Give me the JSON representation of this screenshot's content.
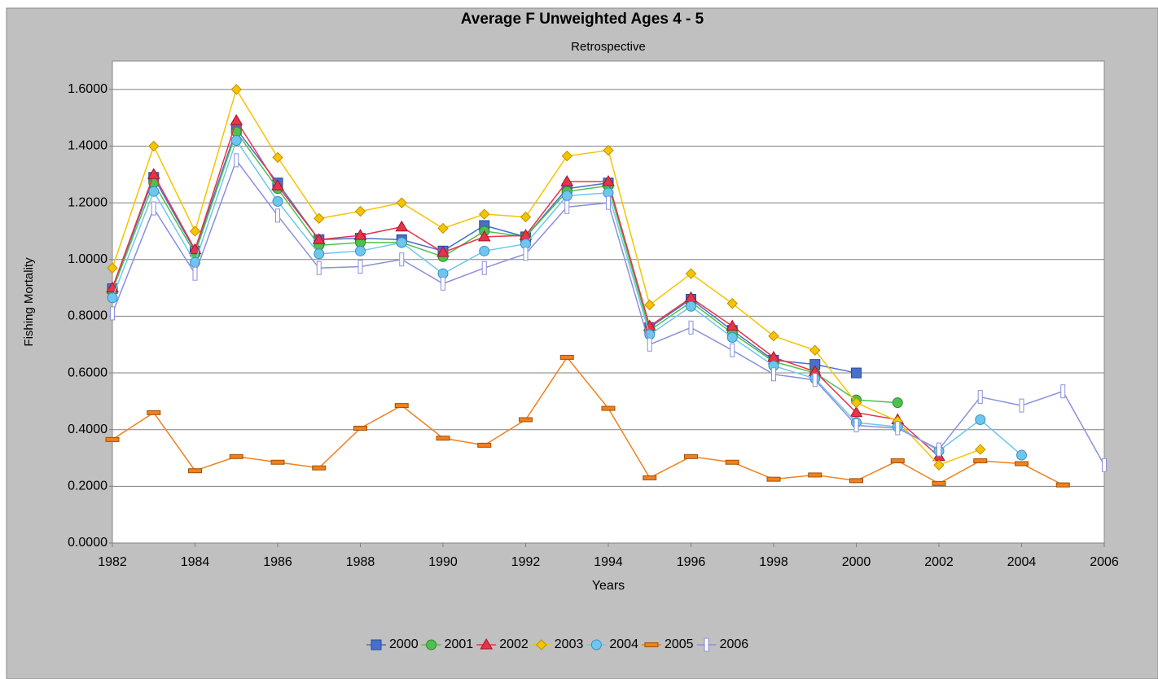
{
  "chart_data": {
    "type": "line",
    "title": "Average F Unweighted Ages 4 - 5",
    "subtitle": "Retrospective",
    "x_label": "Years",
    "y_label": "Fishing Mortality",
    "x": [
      1982,
      1983,
      1984,
      1985,
      1986,
      1987,
      1988,
      1989,
      1990,
      1991,
      1992,
      1993,
      1994,
      1995,
      1996,
      1997,
      1998,
      1999,
      2000,
      2001,
      2002,
      2003,
      2004,
      2005,
      2006
    ],
    "xlim": [
      1982,
      2006
    ],
    "xticks": [
      1982,
      1984,
      1986,
      1988,
      1990,
      1992,
      1994,
      1996,
      1998,
      2000,
      2002,
      2004,
      2006
    ],
    "ylim": [
      0,
      1.7
    ],
    "yticks": [
      {
        "value": 0,
        "label": "0.0000"
      },
      {
        "value": 0.2,
        "label": "0.2000"
      },
      {
        "value": 0.4,
        "label": "0.4000"
      },
      {
        "value": 0.6,
        "label": "0.6000"
      },
      {
        "value": 0.8,
        "label": "0.8000"
      },
      {
        "value": 1.0,
        "label": "1.0000"
      },
      {
        "value": 1.2,
        "label": "1.2000"
      },
      {
        "value": 1.4,
        "label": "1.4000"
      },
      {
        "value": 1.6,
        "label": "1.6000"
      }
    ],
    "grid": true,
    "legend": "bottom",
    "series": [
      {
        "name": "2000",
        "color": "#4a6fc8",
        "values": [
          0.897,
          1.29,
          1.03,
          1.46,
          1.27,
          1.07,
          1.075,
          1.07,
          1.03,
          1.12,
          1.08,
          1.25,
          1.27,
          0.76,
          0.86,
          0.75,
          0.645,
          0.63,
          0.6,
          null,
          null,
          null,
          null,
          null,
          null
        ]
      },
      {
        "name": "2001",
        "color": "#4fc04f",
        "values": [
          0.89,
          1.27,
          1.02,
          1.45,
          1.25,
          1.05,
          1.06,
          1.06,
          1.01,
          1.1,
          1.08,
          1.24,
          1.26,
          0.75,
          0.85,
          0.74,
          0.64,
          0.6,
          0.505,
          0.495,
          null,
          null,
          null,
          null,
          null
        ]
      },
      {
        "name": "2002",
        "color": "#e8334a",
        "values": [
          0.9,
          1.3,
          1.035,
          1.49,
          1.26,
          1.07,
          1.085,
          1.115,
          1.025,
          1.08,
          1.085,
          1.275,
          1.275,
          0.765,
          0.865,
          0.765,
          0.655,
          0.605,
          0.46,
          0.435,
          0.305,
          null,
          null,
          null,
          null
        ]
      },
      {
        "name": "2003",
        "color": "#f5c400",
        "values": [
          0.97,
          1.4,
          1.1,
          1.6,
          1.36,
          1.145,
          1.17,
          1.2,
          1.11,
          1.16,
          1.15,
          1.365,
          1.385,
          0.84,
          0.95,
          0.845,
          0.73,
          0.68,
          0.495,
          0.43,
          0.275,
          0.33,
          null,
          null,
          null
        ]
      },
      {
        "name": "2004",
        "color": "#6ec6ee",
        "values": [
          0.865,
          1.24,
          0.99,
          1.42,
          1.205,
          1.02,
          1.03,
          1.06,
          0.95,
          1.03,
          1.055,
          1.225,
          1.235,
          0.735,
          0.835,
          0.725,
          0.625,
          0.58,
          0.425,
          0.41,
          0.325,
          0.435,
          0.31,
          null,
          null
        ]
      },
      {
        "name": "2005",
        "color": "#f08020",
        "values": [
          0.365,
          0.46,
          0.255,
          0.305,
          0.285,
          0.265,
          0.405,
          0.485,
          0.37,
          0.345,
          0.435,
          0.655,
          0.475,
          0.23,
          0.305,
          0.285,
          0.225,
          0.24,
          0.22,
          0.29,
          0.21,
          0.29,
          0.28,
          0.205,
          null
        ]
      },
      {
        "name": "2006",
        "color": "#8a90dc",
        "values": [
          0.81,
          1.18,
          0.95,
          1.35,
          1.155,
          0.97,
          0.975,
          1.0,
          0.915,
          0.97,
          1.02,
          1.185,
          1.2,
          0.7,
          0.76,
          0.68,
          0.595,
          0.575,
          0.415,
          0.405,
          0.33,
          0.515,
          0.485,
          0.535,
          0.275
        ]
      }
    ]
  }
}
